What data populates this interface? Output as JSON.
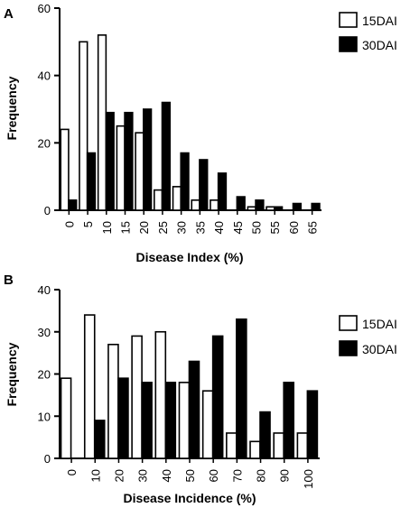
{
  "chart_data": [
    {
      "type": "bar",
      "panel_label": "A",
      "categories": [
        "0",
        "5",
        "10",
        "15",
        "20",
        "25",
        "30",
        "35",
        "40",
        "45",
        "50",
        "55",
        "60",
        "65"
      ],
      "series": [
        {
          "name": "15DAI",
          "fill": "#ffffff",
          "values": [
            24,
            50,
            52,
            25,
            23,
            6,
            7,
            3,
            3,
            0,
            1,
            1,
            0,
            0
          ]
        },
        {
          "name": "30DAI",
          "fill": "#000000",
          "values": [
            3,
            17,
            29,
            29,
            30,
            32,
            17,
            15,
            11,
            4,
            3,
            1,
            2,
            2
          ]
        }
      ],
      "xlabel": "Disease Index (%)",
      "ylabel": "Frequency",
      "ylim": [
        0,
        60
      ],
      "yticks": [
        "0",
        "20",
        "40",
        "60"
      ],
      "grid": false,
      "legend_position": "top-right"
    },
    {
      "type": "bar",
      "panel_label": "B",
      "categories": [
        "0",
        "10",
        "20",
        "30",
        "40",
        "50",
        "60",
        "70",
        "80",
        "90",
        "100"
      ],
      "series": [
        {
          "name": "15DAI",
          "fill": "#ffffff",
          "values": [
            19,
            34,
            27,
            29,
            30,
            18,
            16,
            6,
            4,
            6,
            6
          ]
        },
        {
          "name": "30DAI",
          "fill": "#000000",
          "values": [
            0,
            9,
            19,
            18,
            18,
            23,
            29,
            33,
            11,
            18,
            16
          ]
        }
      ],
      "xlabel": "Disease Incidence (%)",
      "ylabel": "Frequency",
      "ylim": [
        0,
        40
      ],
      "yticks": [
        "0",
        "10",
        "20",
        "30",
        "40"
      ],
      "grid": false,
      "legend_position": "top-right"
    }
  ]
}
